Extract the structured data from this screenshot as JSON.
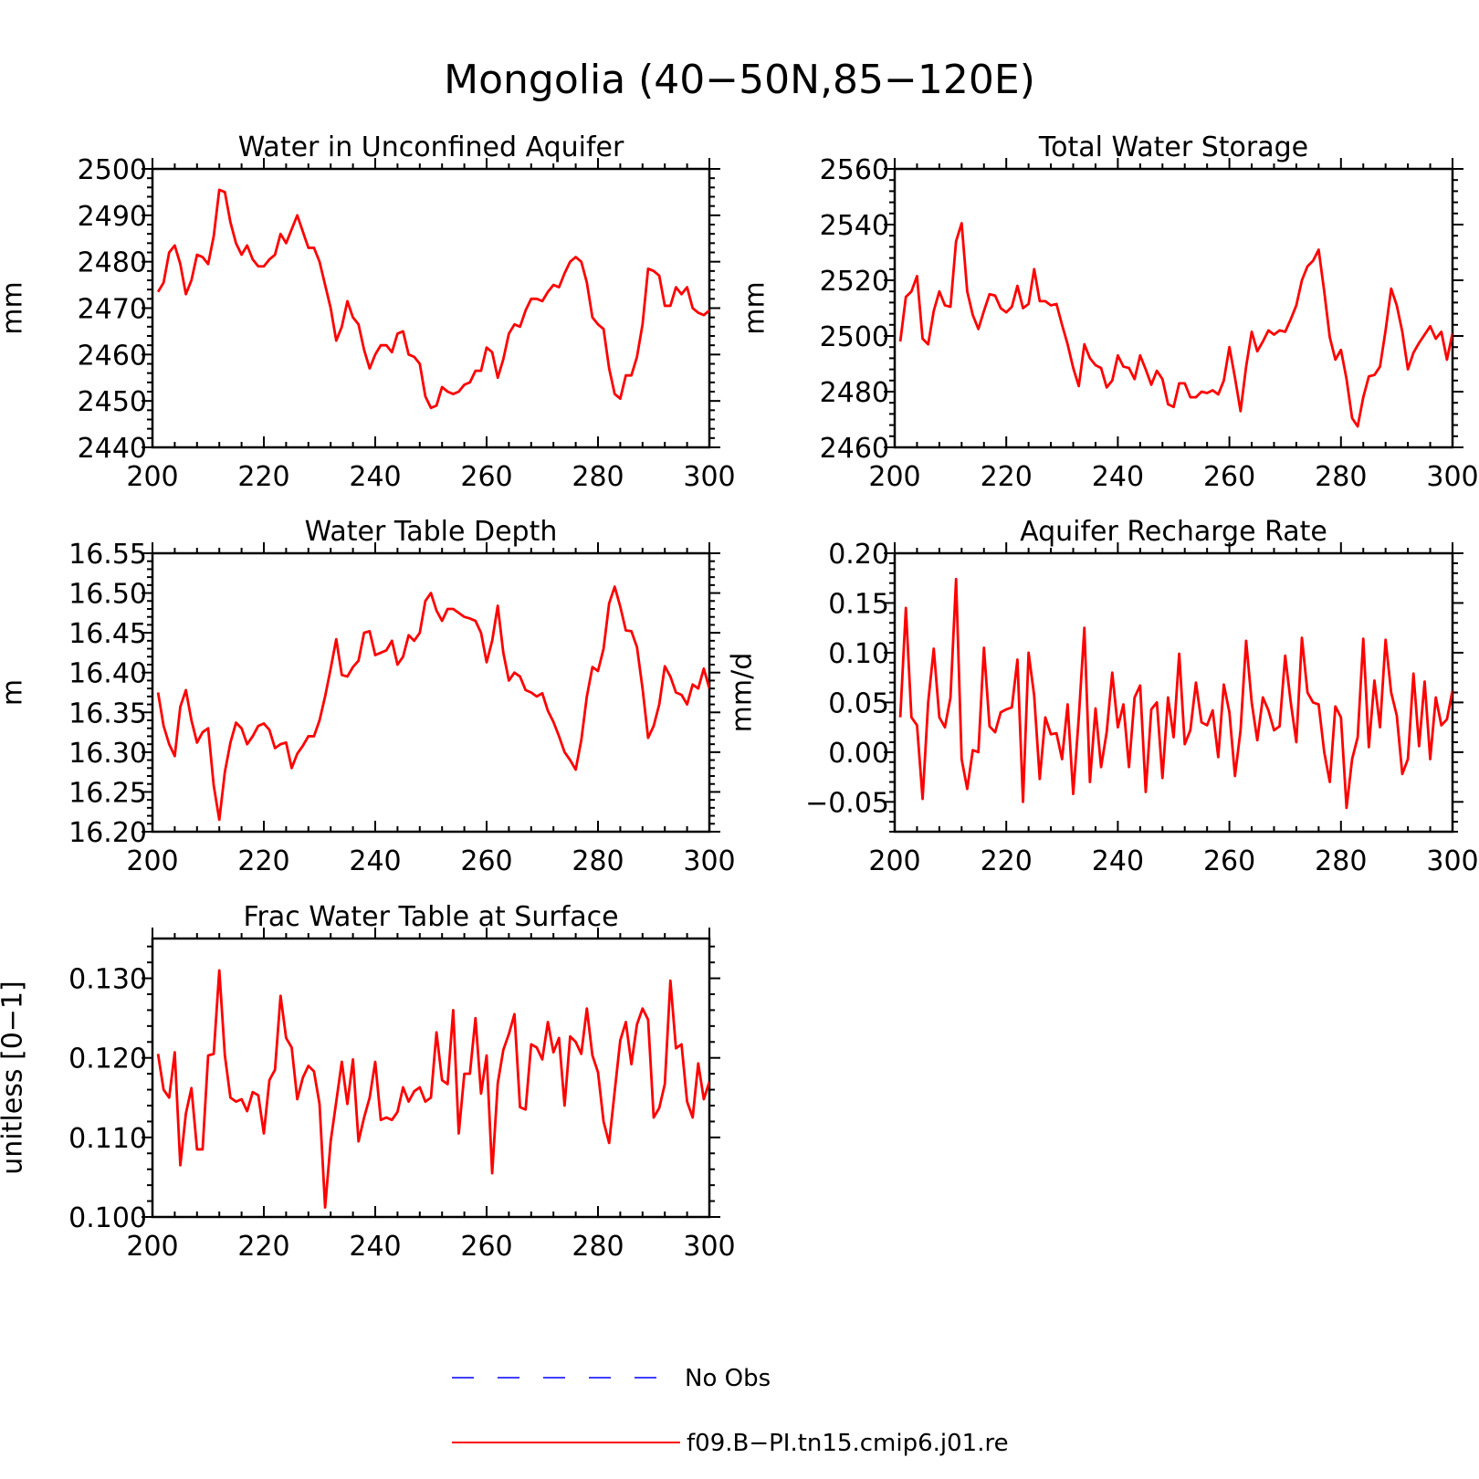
{
  "figure": {
    "title": "Mongolia (40−50N,85−120E)"
  },
  "colors": {
    "series": "#ff0000",
    "obs": "#0000ff",
    "axis": "#000000"
  },
  "legend": {
    "position": "bottom",
    "entries": [
      {
        "label": "No Obs",
        "color": "#0000ff",
        "style": "dashed"
      },
      {
        "label": "f09.B−PI.tn15.cmip6.j01.re",
        "color": "#ff0000",
        "style": "solid"
      }
    ]
  },
  "chart_data": [
    {
      "type": "line",
      "title": "Water in Unconfined Aquifer",
      "ylabel": "mm",
      "xlim": [
        200,
        300
      ],
      "ylim": [
        2440,
        2500
      ],
      "xticks": [
        200,
        220,
        240,
        260,
        280,
        300
      ],
      "xtick_labels": [
        "200",
        "220",
        "240",
        "260",
        "280",
        "300"
      ],
      "yticks": [
        2440,
        2450,
        2460,
        2470,
        2480,
        2490,
        2500
      ],
      "ytick_labels": [
        "2440",
        "2450",
        "2460",
        "2470",
        "2480",
        "2490",
        "2500"
      ],
      "x_start": 201,
      "series": [
        {
          "name": "f09.B−PI.tn15.cmip6.j01.re",
          "values": [
            2473.5,
            2475.5,
            2482,
            2483.5,
            2479.5,
            2473,
            2476,
            2481.5,
            2481,
            2479.5,
            2485.5,
            2495.5,
            2495,
            2488.5,
            2484,
            2481.5,
            2483.5,
            2480.5,
            2479,
            2479,
            2480.5,
            2481.5,
            2486,
            2484,
            2487,
            2490,
            2486.5,
            2483,
            2483,
            2480,
            2475,
            2470,
            2463,
            2466,
            2471.5,
            2468,
            2466.5,
            2461,
            2457,
            2460,
            2462,
            2462,
            2460.5,
            2464.5,
            2465,
            2460,
            2459.5,
            2458,
            2451,
            2448.5,
            2449,
            2453,
            2452,
            2451.5,
            2452,
            2453.5,
            2454,
            2456.5,
            2456.5,
            2461.5,
            2460.5,
            2455,
            2459,
            2464.5,
            2466.5,
            2466,
            2469.5,
            2472,
            2472,
            2471.5,
            2473.5,
            2475,
            2474.5,
            2477.5,
            2480,
            2481,
            2480,
            2475.5,
            2468,
            2466.5,
            2465.5,
            2457,
            2451.5,
            2450.5,
            2455.5,
            2455.5,
            2459.5,
            2466.5,
            2478.5,
            2478,
            2477,
            2470.5,
            2470.5,
            2474.5,
            2473,
            2474.5,
            2470,
            2469,
            2468.5,
            2469.5
          ]
        }
      ]
    },
    {
      "type": "line",
      "title": "Total Water Storage",
      "ylabel": "mm",
      "xlim": [
        200,
        300
      ],
      "ylim": [
        2460,
        2560
      ],
      "xticks": [
        200,
        220,
        240,
        260,
        280,
        300
      ],
      "xtick_labels": [
        "200",
        "220",
        "240",
        "260",
        "280",
        "300"
      ],
      "yticks": [
        2460,
        2480,
        2500,
        2520,
        2540,
        2560
      ],
      "ytick_labels": [
        "2460",
        "2480",
        "2500",
        "2520",
        "2540",
        "2560"
      ],
      "x_start": 201,
      "series": [
        {
          "name": "f09.B−PI.tn15.cmip6.j01.re",
          "values": [
            2498,
            2514,
            2516,
            2521.5,
            2499,
            2497,
            2509,
            2516,
            2511,
            2510.5,
            2534,
            2540.5,
            2516,
            2507.5,
            2502.5,
            2509,
            2515,
            2514.5,
            2510,
            2508.5,
            2510.5,
            2518,
            2510,
            2511.5,
            2524,
            2512.5,
            2512.5,
            2511,
            2511.5,
            2504,
            2497,
            2488.5,
            2482,
            2497,
            2492,
            2489.5,
            2488.5,
            2481.5,
            2484,
            2493,
            2489,
            2488.5,
            2484.5,
            2493,
            2488,
            2482.5,
            2487.5,
            2484.5,
            2475.5,
            2474.5,
            2483,
            2483,
            2478,
            2478,
            2480,
            2479.5,
            2480.5,
            2479,
            2484,
            2496,
            2485,
            2473,
            2489,
            2501.5,
            2494.5,
            2498,
            2502,
            2500.5,
            2502,
            2501.5,
            2506,
            2511,
            2520,
            2525,
            2527,
            2531,
            2516,
            2499.5,
            2491.5,
            2495,
            2484.5,
            2470.5,
            2467.5,
            2478,
            2485.5,
            2486,
            2489,
            2502,
            2517,
            2511,
            2501.5,
            2488,
            2494,
            2497.5,
            2500.5,
            2503.5,
            2499,
            2501.5,
            2491.5,
            2501
          ]
        }
      ]
    },
    {
      "type": "line",
      "title": "Water Table Depth",
      "ylabel": "m",
      "xlim": [
        200,
        300
      ],
      "ylim": [
        16.2,
        16.55
      ],
      "xticks": [
        200,
        220,
        240,
        260,
        280,
        300
      ],
      "xtick_labels": [
        "200",
        "220",
        "240",
        "260",
        "280",
        "300"
      ],
      "yticks": [
        16.2,
        16.25,
        16.3,
        16.35,
        16.4,
        16.45,
        16.5,
        16.55
      ],
      "ytick_labels": [
        "16.20",
        "16.25",
        "16.30",
        "16.35",
        "16.40",
        "16.45",
        "16.50",
        "16.55"
      ],
      "x_start": 201,
      "series": [
        {
          "name": "f09.B−PI.tn15.cmip6.j01.re",
          "values": [
            16.375,
            16.333,
            16.31,
            16.295,
            16.357,
            16.378,
            16.34,
            16.312,
            16.325,
            16.33,
            16.258,
            16.215,
            16.275,
            16.312,
            16.337,
            16.33,
            16.31,
            16.32,
            16.333,
            16.336,
            16.328,
            16.305,
            16.31,
            16.312,
            16.28,
            16.298,
            16.308,
            16.32,
            16.32,
            16.34,
            16.37,
            16.405,
            16.442,
            16.397,
            16.395,
            16.407,
            16.415,
            16.45,
            16.452,
            16.422,
            16.425,
            16.428,
            16.44,
            16.41,
            16.42,
            16.447,
            16.44,
            16.45,
            16.49,
            16.5,
            16.478,
            16.465,
            16.48,
            16.48,
            16.475,
            16.47,
            16.468,
            16.465,
            16.45,
            16.413,
            16.44,
            16.484,
            16.425,
            16.39,
            16.4,
            16.395,
            16.378,
            16.375,
            16.37,
            16.374,
            16.352,
            16.338,
            16.32,
            16.3,
            16.29,
            16.278,
            16.315,
            16.37,
            16.407,
            16.402,
            16.43,
            16.487,
            16.508,
            16.483,
            16.453,
            16.452,
            16.432,
            16.38,
            16.318,
            16.333,
            16.36,
            16.408,
            16.395,
            16.375,
            16.372,
            16.36,
            16.385,
            16.38,
            16.405,
            16.38
          ]
        }
      ]
    },
    {
      "type": "line",
      "title": "Aquifer Recharge Rate",
      "ylabel": "mm/d",
      "xlim": [
        200,
        300
      ],
      "ylim": [
        -0.08,
        0.2
      ],
      "xticks": [
        200,
        220,
        240,
        260,
        280,
        300
      ],
      "xtick_labels": [
        "200",
        "220",
        "240",
        "260",
        "280",
        "300"
      ],
      "yticks": [
        -0.05,
        0.0,
        0.05,
        0.1,
        0.15,
        0.2
      ],
      "ytick_labels": [
        "−0.05",
        "0.00",
        "0.05",
        "0.10",
        "0.15",
        "0.20"
      ],
      "x_start": 201,
      "series": [
        {
          "name": "f09.B−PI.tn15.cmip6.j01.re",
          "values": [
            0.035,
            0.145,
            0.035,
            0.027,
            -0.047,
            0.05,
            0.104,
            0.035,
            0.025,
            0.055,
            0.174,
            -0.007,
            -0.037,
            0.002,
            0.0,
            0.105,
            0.026,
            0.02,
            0.04,
            0.043,
            0.045,
            0.093,
            -0.05,
            0.1,
            0.057,
            -0.027,
            0.035,
            0.018,
            0.019,
            -0.007,
            0.048,
            -0.042,
            0.035,
            0.125,
            -0.03,
            0.044,
            -0.015,
            0.02,
            0.08,
            0.025,
            0.048,
            -0.015,
            0.055,
            0.067,
            -0.04,
            0.043,
            0.05,
            -0.026,
            0.055,
            0.015,
            0.099,
            0.008,
            0.022,
            0.07,
            0.03,
            0.027,
            0.042,
            -0.005,
            0.068,
            0.04,
            -0.024,
            0.022,
            0.112,
            0.05,
            0.012,
            0.055,
            0.042,
            0.022,
            0.026,
            0.097,
            0.05,
            0.01,
            0.115,
            0.06,
            0.05,
            0.048,
            0.0,
            -0.03,
            0.046,
            0.035,
            -0.056,
            -0.007,
            0.015,
            0.114,
            0.005,
            0.072,
            0.025,
            0.113,
            0.06,
            0.037,
            -0.022,
            -0.007,
            0.079,
            0.006,
            0.071,
            -0.007,
            0.055,
            0.027,
            0.033,
            0.062
          ]
        }
      ]
    },
    {
      "type": "line",
      "title": "Frac Water Table at Surface",
      "ylabel": "unitless [0−1]",
      "xlim": [
        200,
        300
      ],
      "ylim": [
        0.1,
        0.135
      ],
      "xticks": [
        200,
        220,
        240,
        260,
        280,
        300
      ],
      "xtick_labels": [
        "200",
        "220",
        "240",
        "260",
        "280",
        "300"
      ],
      "yticks": [
        0.1,
        0.11,
        0.12,
        0.13
      ],
      "ytick_labels": [
        "0.100",
        "0.110",
        "0.120",
        "0.130"
      ],
      "x_start": 201,
      "series": [
        {
          "name": "f09.B−PI.tn15.cmip6.j01.re",
          "values": [
            0.1205,
            0.116,
            0.115,
            0.1207,
            0.1065,
            0.113,
            0.1162,
            0.1085,
            0.1085,
            0.1203,
            0.1205,
            0.131,
            0.1203,
            0.115,
            0.1145,
            0.1148,
            0.1133,
            0.1157,
            0.1153,
            0.1105,
            0.1172,
            0.1185,
            0.1278,
            0.1225,
            0.1213,
            0.1148,
            0.1175,
            0.119,
            0.1183,
            0.1142,
            0.1012,
            0.1095,
            0.1145,
            0.1195,
            0.1142,
            0.1198,
            0.1095,
            0.1125,
            0.115,
            0.1195,
            0.1122,
            0.1125,
            0.1122,
            0.1132,
            0.1163,
            0.1145,
            0.1158,
            0.1163,
            0.1145,
            0.115,
            0.1232,
            0.1172,
            0.1167,
            0.126,
            0.1105,
            0.118,
            0.118,
            0.125,
            0.1155,
            0.1203,
            0.1055,
            0.1168,
            0.121,
            0.123,
            0.1255,
            0.1138,
            0.1135,
            0.1217,
            0.1213,
            0.1198,
            0.1245,
            0.1207,
            0.1225,
            0.114,
            0.1227,
            0.122,
            0.1205,
            0.1262,
            0.1203,
            0.1182,
            0.112,
            0.1093,
            0.1158,
            0.1222,
            0.1245,
            0.1192,
            0.1242,
            0.1262,
            0.1248,
            0.1125,
            0.1137,
            0.1167,
            0.1297,
            0.1212,
            0.1217,
            0.1145,
            0.1125,
            0.1193,
            0.1148,
            0.117
          ]
        }
      ]
    }
  ]
}
